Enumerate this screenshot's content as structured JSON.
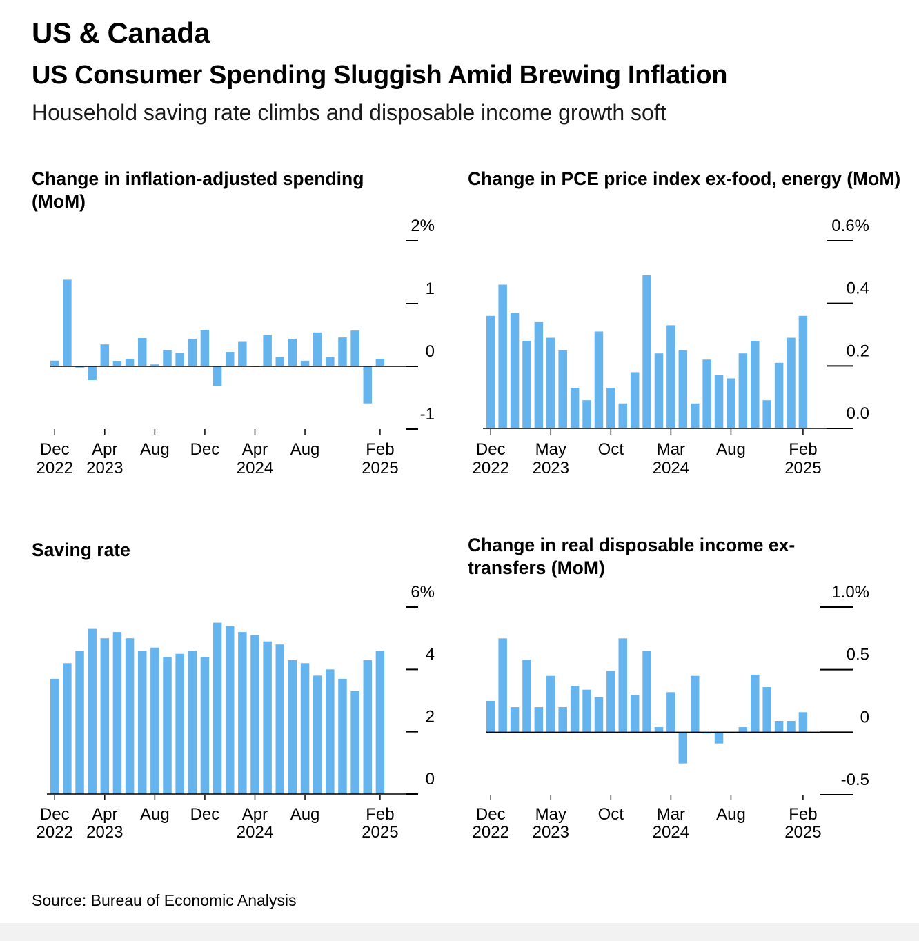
{
  "header": {
    "section": "US & Canada",
    "title": "US Consumer Spending Sluggish Amid Brewing Inflation",
    "subtitle": "Household saving rate climbs and disposable income growth soft"
  },
  "source": "Source: Bureau of Economic Analysis",
  "colors": {
    "bar": "#65b4ee",
    "axis": "#000000"
  },
  "chart_data": [
    {
      "id": "spending",
      "type": "bar",
      "title": "Change in inflation-adjusted spending (MoM)",
      "ylim": [
        -1,
        2
      ],
      "yticks": [
        {
          "value": 2,
          "label": "2%"
        },
        {
          "value": 1,
          "label": "1"
        },
        {
          "value": 0,
          "label": "0"
        },
        {
          "value": -1,
          "label": "-1"
        }
      ],
      "xticks": [
        {
          "index": 0,
          "month": "Dec",
          "year": "2022"
        },
        {
          "index": 4,
          "month": "Apr",
          "year": "2023"
        },
        {
          "index": 8,
          "month": "Aug",
          "year": ""
        },
        {
          "index": 12,
          "month": "Dec",
          "year": ""
        },
        {
          "index": 16,
          "month": "Apr",
          "year": "2024"
        },
        {
          "index": 20,
          "month": "Aug",
          "year": ""
        },
        {
          "index": 26,
          "month": "Feb",
          "year": "2025"
        }
      ],
      "values": [
        0.09,
        1.38,
        -0.02,
        -0.22,
        0.35,
        0.08,
        0.12,
        0.45,
        0.03,
        0.26,
        0.22,
        0.44,
        0.58,
        -0.31,
        0.23,
        0.39,
        -0.01,
        0.5,
        0.15,
        0.44,
        0.09,
        0.54,
        0.15,
        0.46,
        0.57,
        -0.59,
        0.12
      ]
    },
    {
      "id": "pce",
      "type": "bar",
      "title": "Change in PCE price index ex-food, energy (MoM)",
      "ylim": [
        0,
        0.6
      ],
      "yticks": [
        {
          "value": 0.6,
          "label": "0.6%"
        },
        {
          "value": 0.4,
          "label": "0.4"
        },
        {
          "value": 0.2,
          "label": "0.2"
        },
        {
          "value": 0.0,
          "label": "0.0"
        }
      ],
      "xticks": [
        {
          "index": 0,
          "month": "Dec",
          "year": "2022"
        },
        {
          "index": 5,
          "month": "May",
          "year": "2023"
        },
        {
          "index": 10,
          "month": "Oct",
          "year": ""
        },
        {
          "index": 15,
          "month": "Mar",
          "year": "2024"
        },
        {
          "index": 20,
          "month": "Aug",
          "year": ""
        },
        {
          "index": 26,
          "month": "Feb",
          "year": "2025"
        }
      ],
      "values": [
        0.36,
        0.46,
        0.37,
        0.28,
        0.34,
        0.29,
        0.25,
        0.13,
        0.09,
        0.31,
        0.13,
        0.08,
        0.18,
        0.49,
        0.24,
        0.33,
        0.25,
        0.08,
        0.22,
        0.17,
        0.16,
        0.24,
        0.28,
        0.09,
        0.21,
        0.29,
        0.36
      ]
    },
    {
      "id": "saving",
      "type": "bar",
      "title": "Saving rate",
      "ylim": [
        0,
        6
      ],
      "yticks": [
        {
          "value": 6,
          "label": "6%"
        },
        {
          "value": 4,
          "label": "4"
        },
        {
          "value": 2,
          "label": "2"
        },
        {
          "value": 0,
          "label": "0"
        }
      ],
      "xticks": [
        {
          "index": 0,
          "month": "Dec",
          "year": "2022"
        },
        {
          "index": 4,
          "month": "Apr",
          "year": "2023"
        },
        {
          "index": 8,
          "month": "Aug",
          "year": ""
        },
        {
          "index": 12,
          "month": "Dec",
          "year": ""
        },
        {
          "index": 16,
          "month": "Apr",
          "year": "2024"
        },
        {
          "index": 20,
          "month": "Aug",
          "year": ""
        },
        {
          "index": 26,
          "month": "Feb",
          "year": "2025"
        }
      ],
      "values": [
        3.7,
        4.2,
        4.6,
        5.3,
        5.0,
        5.2,
        5.0,
        4.6,
        4.7,
        4.4,
        4.5,
        4.6,
        4.4,
        5.5,
        5.4,
        5.2,
        5.1,
        4.9,
        4.8,
        4.3,
        4.2,
        3.8,
        4.0,
        3.7,
        3.3,
        4.3,
        4.6
      ]
    },
    {
      "id": "income",
      "type": "bar",
      "title": "Change in real disposable income ex-transfers (MoM)",
      "ylim": [
        -0.5,
        1.0
      ],
      "yticks": [
        {
          "value": 1.0,
          "label": "1.0%"
        },
        {
          "value": 0.5,
          "label": "0.5"
        },
        {
          "value": 0,
          "label": "0"
        },
        {
          "value": -0.5,
          "label": "-0.5"
        }
      ],
      "xticks": [
        {
          "index": 0,
          "month": "Dec",
          "year": "2022"
        },
        {
          "index": 5,
          "month": "May",
          "year": "2023"
        },
        {
          "index": 10,
          "month": "Oct",
          "year": ""
        },
        {
          "index": 15,
          "month": "Mar",
          "year": "2024"
        },
        {
          "index": 20,
          "month": "Aug",
          "year": ""
        },
        {
          "index": 26,
          "month": "Feb",
          "year": "2025"
        }
      ],
      "values": [
        0.25,
        0.75,
        0.2,
        0.58,
        0.2,
        0.45,
        0.2,
        0.37,
        0.34,
        0.28,
        0.49,
        0.75,
        0.3,
        0.65,
        0.04,
        0.32,
        -0.25,
        0.45,
        -0.01,
        -0.09,
        0.0,
        0.04,
        0.46,
        0.36,
        0.09,
        0.09,
        0.16
      ]
    }
  ]
}
